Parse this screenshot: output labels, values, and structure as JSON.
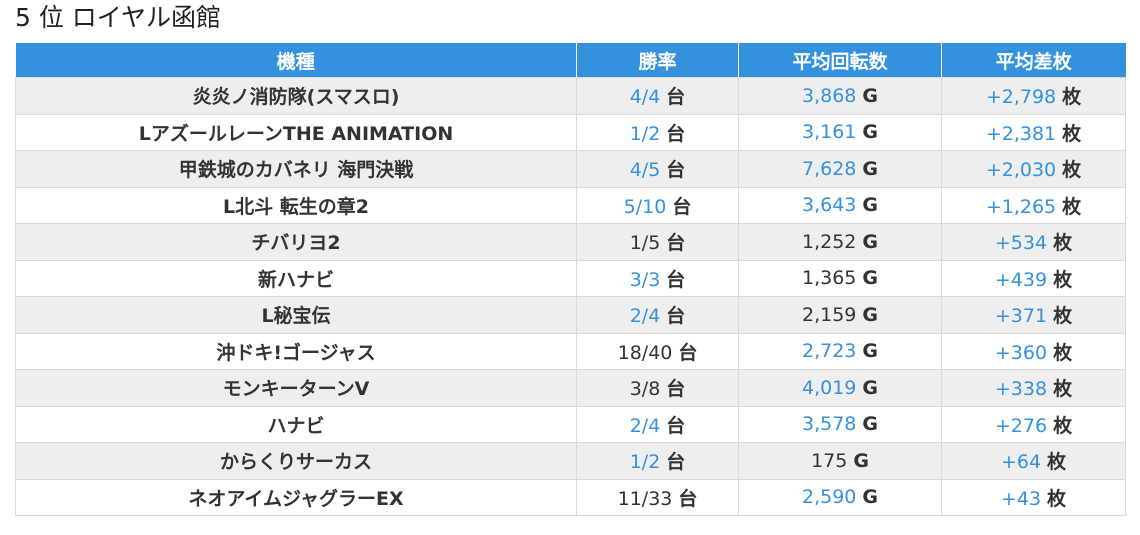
{
  "page": {
    "title": "5 位 ロイヤル函館"
  },
  "colors": {
    "header_bg": "#3391dd",
    "link_blue": "#3391dd",
    "row_stripe": "#eeeeee",
    "text": "#333333"
  },
  "table": {
    "headers": [
      "機種",
      "勝率",
      "平均回転数",
      "平均差枚"
    ],
    "rows": [
      {
        "model": "炎炎ノ消防隊(スマスロ)",
        "win_rate": "4/4",
        "win_unit": "台",
        "win_blue": true,
        "avg_spins": "3,868",
        "spins_unit": "G",
        "spins_blue": true,
        "avg_diff": "+2,798",
        "diff_unit": "枚",
        "diff_blue": true
      },
      {
        "model": "LアズールレーンTHE ANIMATION",
        "win_rate": "1/2",
        "win_unit": "台",
        "win_blue": true,
        "avg_spins": "3,161",
        "spins_unit": "G",
        "spins_blue": true,
        "avg_diff": "+2,381",
        "diff_unit": "枚",
        "diff_blue": true
      },
      {
        "model": "甲鉄城のカバネリ 海門決戦",
        "win_rate": "4/5",
        "win_unit": "台",
        "win_blue": true,
        "avg_spins": "7,628",
        "spins_unit": "G",
        "spins_blue": true,
        "avg_diff": "+2,030",
        "diff_unit": "枚",
        "diff_blue": true
      },
      {
        "model": "L北斗 転生の章2",
        "win_rate": "5/10",
        "win_unit": "台",
        "win_blue": true,
        "avg_spins": "3,643",
        "spins_unit": "G",
        "spins_blue": true,
        "avg_diff": "+1,265",
        "diff_unit": "枚",
        "diff_blue": true
      },
      {
        "model": "チバリヨ2",
        "win_rate": "1/5",
        "win_unit": "台",
        "win_blue": false,
        "avg_spins": "1,252",
        "spins_unit": "G",
        "spins_blue": false,
        "avg_diff": "+534",
        "diff_unit": "枚",
        "diff_blue": true
      },
      {
        "model": "新ハナビ",
        "win_rate": "3/3",
        "win_unit": "台",
        "win_blue": true,
        "avg_spins": "1,365",
        "spins_unit": "G",
        "spins_blue": false,
        "avg_diff": "+439",
        "diff_unit": "枚",
        "diff_blue": true
      },
      {
        "model": "L秘宝伝",
        "win_rate": "2/4",
        "win_unit": "台",
        "win_blue": true,
        "avg_spins": "2,159",
        "spins_unit": "G",
        "spins_blue": false,
        "avg_diff": "+371",
        "diff_unit": "枚",
        "diff_blue": true
      },
      {
        "model": "沖ドキ!ゴージャス",
        "win_rate": "18/40",
        "win_unit": "台",
        "win_blue": false,
        "avg_spins": "2,723",
        "spins_unit": "G",
        "spins_blue": true,
        "avg_diff": "+360",
        "diff_unit": "枚",
        "diff_blue": true
      },
      {
        "model": "モンキーターンV",
        "win_rate": "3/8",
        "win_unit": "台",
        "win_blue": false,
        "avg_spins": "4,019",
        "spins_unit": "G",
        "spins_blue": true,
        "avg_diff": "+338",
        "diff_unit": "枚",
        "diff_blue": true
      },
      {
        "model": "ハナビ",
        "win_rate": "2/4",
        "win_unit": "台",
        "win_blue": true,
        "avg_spins": "3,578",
        "spins_unit": "G",
        "spins_blue": true,
        "avg_diff": "+276",
        "diff_unit": "枚",
        "diff_blue": true
      },
      {
        "model": "からくりサーカス",
        "win_rate": "1/2",
        "win_unit": "台",
        "win_blue": true,
        "avg_spins": "175",
        "spins_unit": "G",
        "spins_blue": false,
        "avg_diff": "+64",
        "diff_unit": "枚",
        "diff_blue": true
      },
      {
        "model": "ネオアイムジャグラーEX",
        "win_rate": "11/33",
        "win_unit": "台",
        "win_blue": false,
        "avg_spins": "2,590",
        "spins_unit": "G",
        "spins_blue": true,
        "avg_diff": "+43",
        "diff_unit": "枚",
        "diff_blue": true
      }
    ]
  }
}
